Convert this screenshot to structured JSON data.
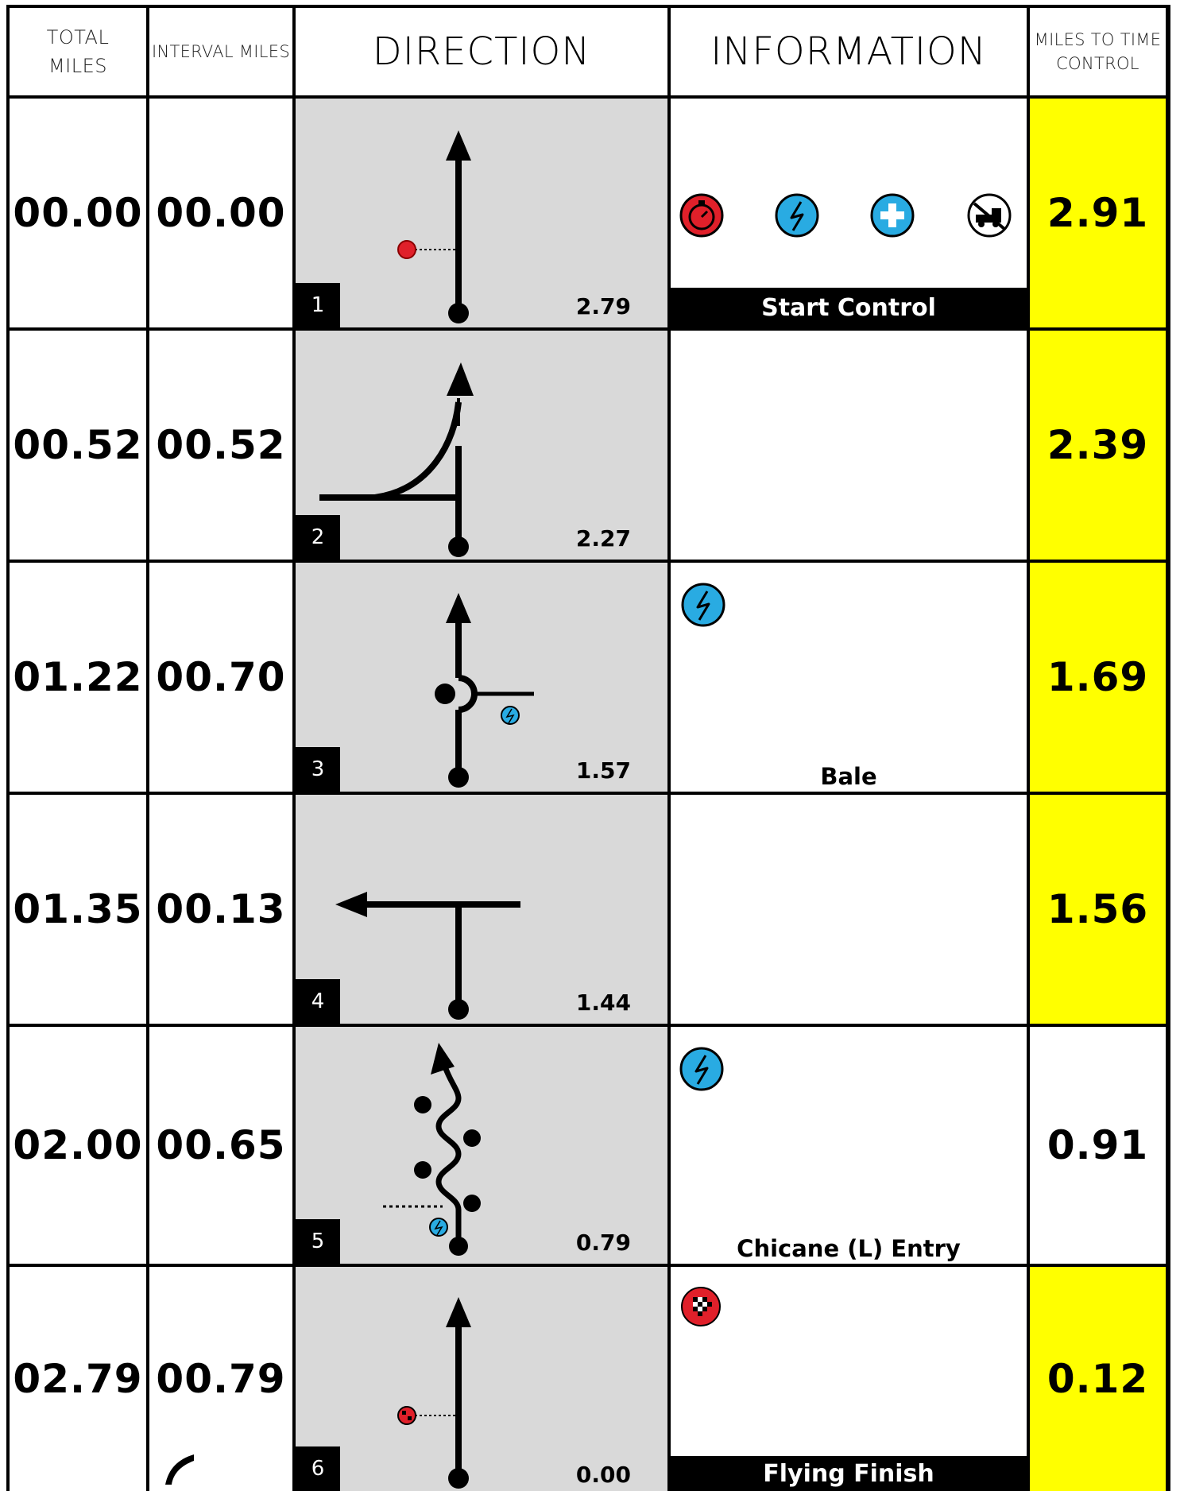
{
  "header": {
    "total_miles": "TOTAL\nMILES",
    "interval_miles": "INTERVAL MILES",
    "direction": "DIRECTION",
    "information": "INFORMATION",
    "miles_to_time_control": "MILES TO TIME\nCONTROL"
  },
  "rows": [
    {
      "total": "00.00",
      "interval": "00.00",
      "step": "1",
      "distance": "2.79",
      "info_label": "Start Control",
      "info_style": "banner",
      "to_control": "2.91",
      "icons": [
        "stopwatch-icon",
        "lightning-icon",
        "medical-icon",
        "tow-truck-icon"
      ]
    },
    {
      "total": "00.52",
      "interval": "00.52",
      "step": "2",
      "distance": "2.27",
      "info_label": "",
      "info_style": "none",
      "to_control": "2.39",
      "icons": []
    },
    {
      "total": "01.22",
      "interval": "00.70",
      "step": "3",
      "distance": "1.57",
      "info_label": "Bale",
      "info_style": "plain",
      "to_control": "1.69",
      "icons": [
        "lightning-icon"
      ]
    },
    {
      "total": "01.35",
      "interval": "00.13",
      "step": "4",
      "distance": "1.44",
      "info_label": "",
      "info_style": "none",
      "to_control": "1.56",
      "icons": []
    },
    {
      "total": "02.00",
      "interval": "00.65",
      "step": "5",
      "distance": "0.79",
      "info_label": "Chicane (L) Entry",
      "info_style": "plain",
      "to_control": "0.91",
      "icons": [
        "lightning-icon"
      ]
    },
    {
      "total": "02.79",
      "interval": "00.79",
      "step": "6",
      "distance": "0.00",
      "info_label": "Flying Finish",
      "info_style": "banner",
      "to_control": "0.12",
      "icons": [
        "checkered-flag-icon"
      ]
    }
  ],
  "colors": {
    "control_highlight": "#ffff00",
    "direction_bg": "#d9d9d9",
    "stopwatch_red": "#e0202a",
    "lightning_blue": "#29abe2"
  }
}
